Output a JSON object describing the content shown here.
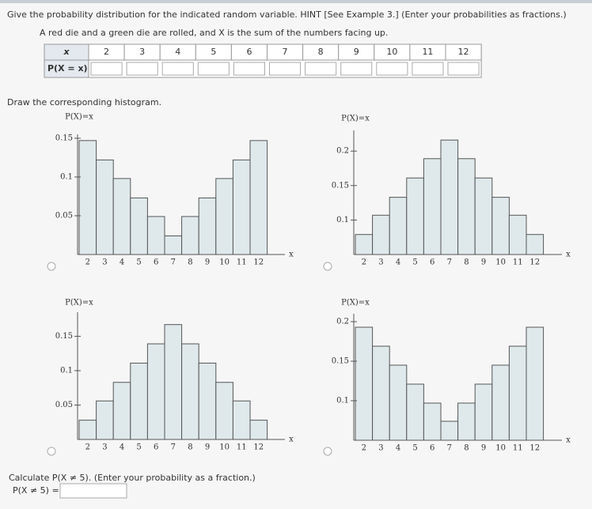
{
  "question": {
    "text": "Give the probability distribution for the indicated random variable. HINT [See Example 3.] (Enter your probabilities as fractions.)",
    "subtext": "A red die and a green die are rolled, and X is the sum of the numbers facing up."
  },
  "table": {
    "row_labels": [
      "x",
      "P(X = x)"
    ],
    "x_values": [
      2,
      3,
      4,
      5,
      6,
      7,
      8,
      9,
      10,
      11,
      12
    ]
  },
  "histogram_prompt": "Draw the corresponding histogram.",
  "chart_data": [
    {
      "type": "bar",
      "y_label": "P(X)=x",
      "x_label": "x",
      "categories": [
        2,
        3,
        4,
        5,
        6,
        7,
        8,
        9,
        10,
        11,
        12
      ],
      "values": [
        0.147,
        0.122,
        0.098,
        0.073,
        0.049,
        0.024,
        0.049,
        0.073,
        0.098,
        0.122,
        0.147
      ],
      "ylim": [
        0,
        0.155
      ],
      "yticks": [
        0.05,
        0.1,
        0.15
      ],
      "color": "#dfe9ec"
    },
    {
      "type": "bar",
      "y_label": "P(X)=x",
      "x_label": "x",
      "categories": [
        2,
        3,
        4,
        5,
        6,
        7,
        8,
        9,
        10,
        11,
        12
      ],
      "values": [
        0.079,
        0.107,
        0.133,
        0.161,
        0.189,
        0.216,
        0.189,
        0.161,
        0.133,
        0.107,
        0.079
      ],
      "ylim": [
        0.05,
        0.23
      ],
      "yticks": [
        0.1,
        0.15,
        0.2
      ],
      "color": "#dfe9ec"
    },
    {
      "type": "bar",
      "y_label": "P(X)=x",
      "x_label": "x",
      "categories": [
        2,
        3,
        4,
        5,
        6,
        7,
        8,
        9,
        10,
        11,
        12
      ],
      "values": [
        0.028,
        0.056,
        0.083,
        0.111,
        0.139,
        0.167,
        0.139,
        0.111,
        0.083,
        0.056,
        0.028
      ],
      "ylim": [
        0,
        0.185
      ],
      "yticks": [
        0.05,
        0.1,
        0.15
      ],
      "color": "#dfe9ec"
    },
    {
      "type": "bar",
      "y_label": "P(X)=x",
      "x_label": "x",
      "categories": [
        2,
        3,
        4,
        5,
        6,
        7,
        8,
        9,
        10,
        11,
        12
      ],
      "values": [
        0.193,
        0.169,
        0.145,
        0.121,
        0.097,
        0.074,
        0.097,
        0.121,
        0.145,
        0.169,
        0.193
      ],
      "ylim": [
        0.05,
        0.21
      ],
      "yticks": [
        0.1,
        0.15,
        0.2
      ],
      "color": "#dfe9ec"
    }
  ],
  "calculate": {
    "text": "Calculate P(X ≠ 5). (Enter your probability as a fraction.)",
    "label": "P(X ≠ 5) ="
  }
}
